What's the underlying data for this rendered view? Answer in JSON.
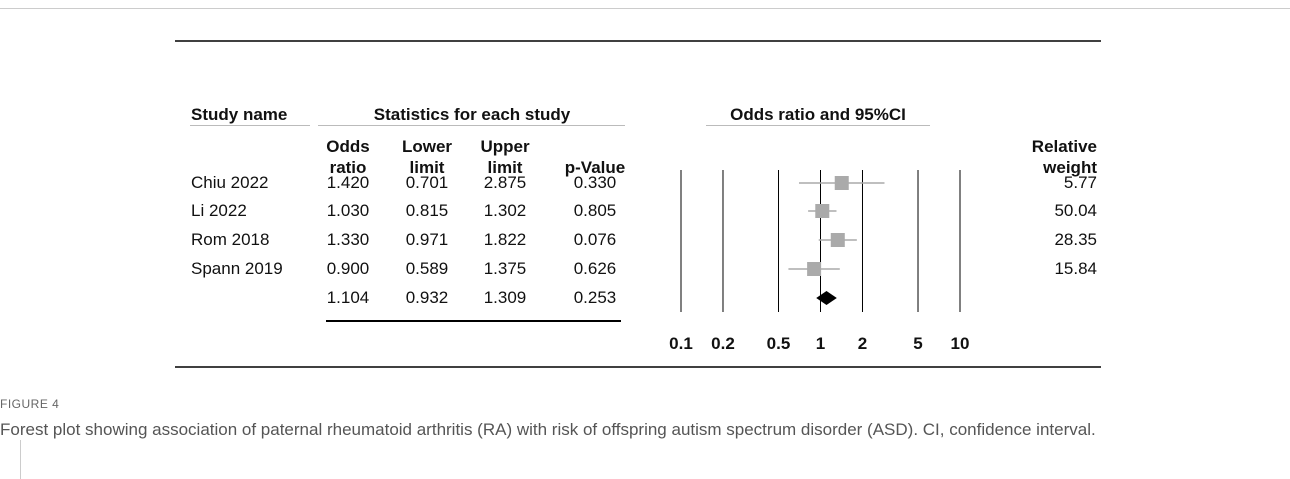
{
  "chart_data": {
    "type": "forest",
    "study_header": "Study name",
    "statistics_header": "Statistics for each study",
    "plot_header": "Odds ratio and 95%CI",
    "categories": [
      "Chiu 2022",
      "Li 2022",
      "Rom 2018",
      "Spann 2019",
      null
    ],
    "series": [
      {
        "name": "Odds ratio",
        "values": [
          1.42,
          1.03,
          1.33,
          0.9,
          1.104
        ],
        "value_labels": [
          "1.420",
          "1.030",
          "1.330",
          "0.900",
          "1.104"
        ]
      },
      {
        "name": "Lower limit",
        "values": [
          0.701,
          0.815,
          0.971,
          0.589,
          0.932
        ]
      },
      {
        "name": "Upper limit",
        "values": [
          2.875,
          1.302,
          1.822,
          1.375,
          1.309
        ]
      },
      {
        "name": "p-Value",
        "values": [
          0.33,
          0.805,
          0.076,
          0.626,
          0.253
        ],
        "value_labels": [
          "0.330",
          "0.805",
          "0.076",
          "0.626",
          "0.253"
        ]
      }
    ],
    "weight": {
      "name": "Relative weight",
      "values": [
        5.77,
        50.04,
        28.35,
        15.84,
        null
      ]
    },
    "xscale": "log",
    "xlim": [
      0.1,
      10
    ],
    "xticks": [
      0.1,
      0.2,
      0.5,
      1,
      2,
      5,
      10
    ],
    "grid": true,
    "marker_color": "#aaaaaa",
    "summary_color": "#000000"
  },
  "caption": {
    "label": "FIGURE 4",
    "text": "Forest plot showing association of paternal rheumatoid arthritis (RA) with risk of offspring autism spectrum disorder (ASD). CI, confidence interval."
  }
}
